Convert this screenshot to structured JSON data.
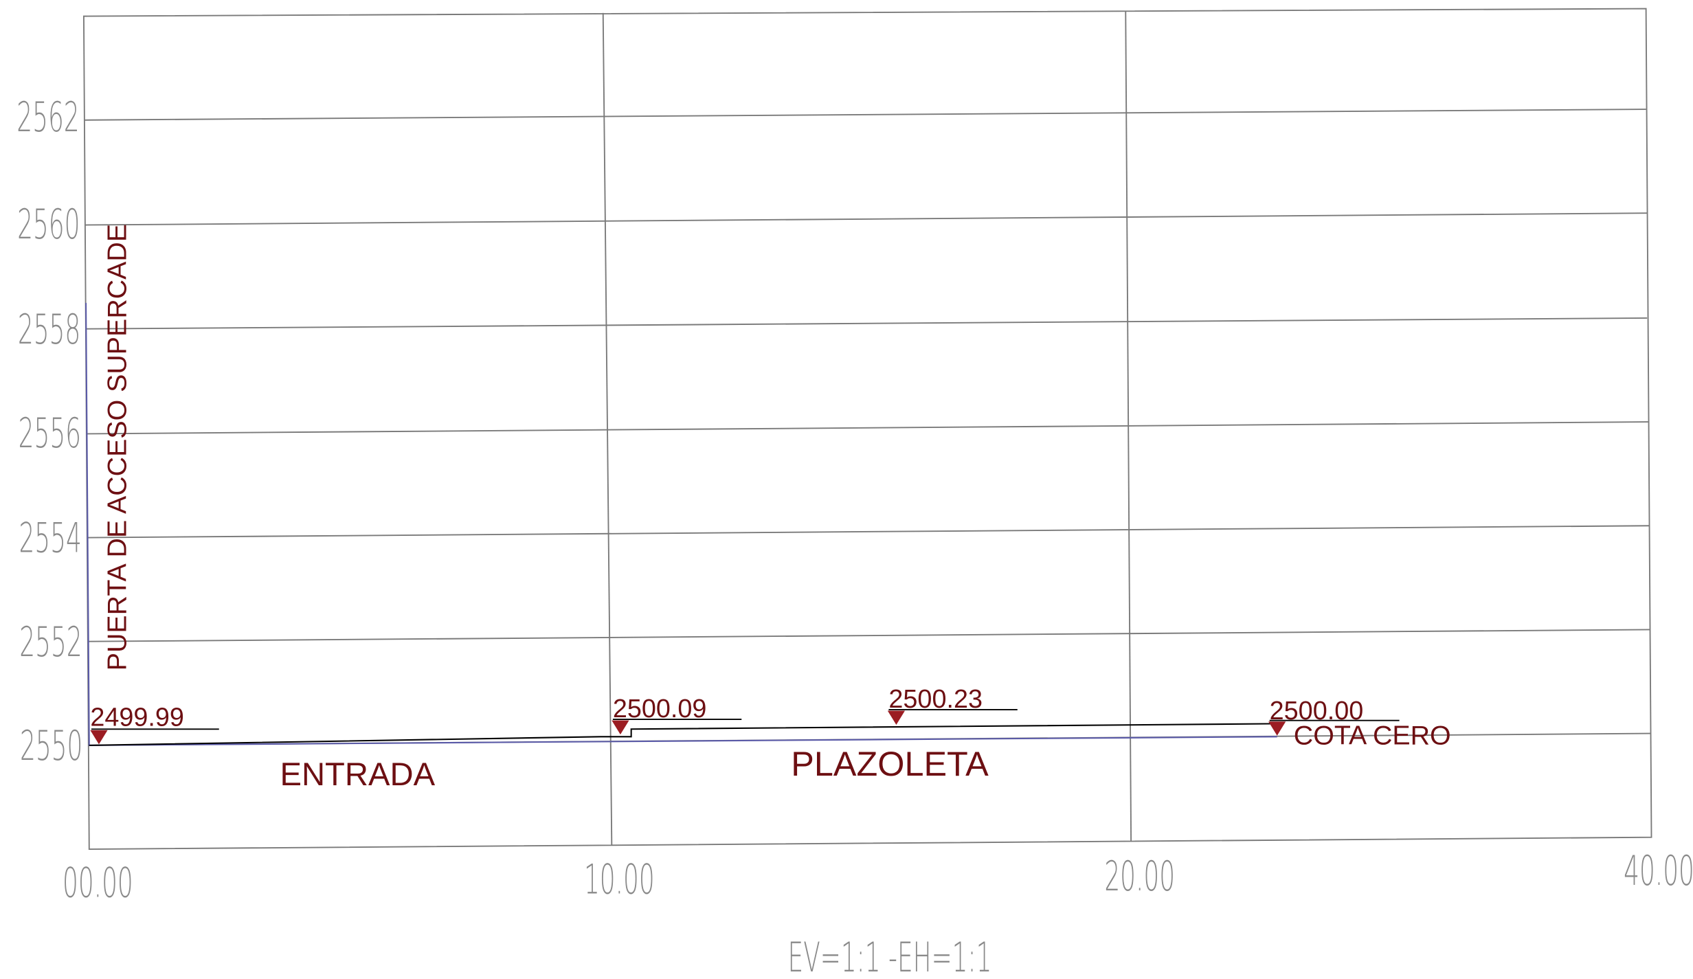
{
  "y_axis_labels": [
    "2562",
    "2560",
    "2558",
    "2556",
    "2554",
    "2552",
    "2550"
  ],
  "x_axis_labels": [
    "00.00",
    "10.00",
    "20.00",
    "40.00"
  ],
  "scale_note": "EV=1:1  -EH=1:1",
  "vertical_label": "PUERTA DE ACCESO SUPERCADE",
  "elevations": [
    "2499.99",
    "2500.09",
    "2500.23",
    "2500.00"
  ],
  "zones": [
    "ENTRADA",
    "PLAZOLETA",
    "COTA CERO"
  ]
}
